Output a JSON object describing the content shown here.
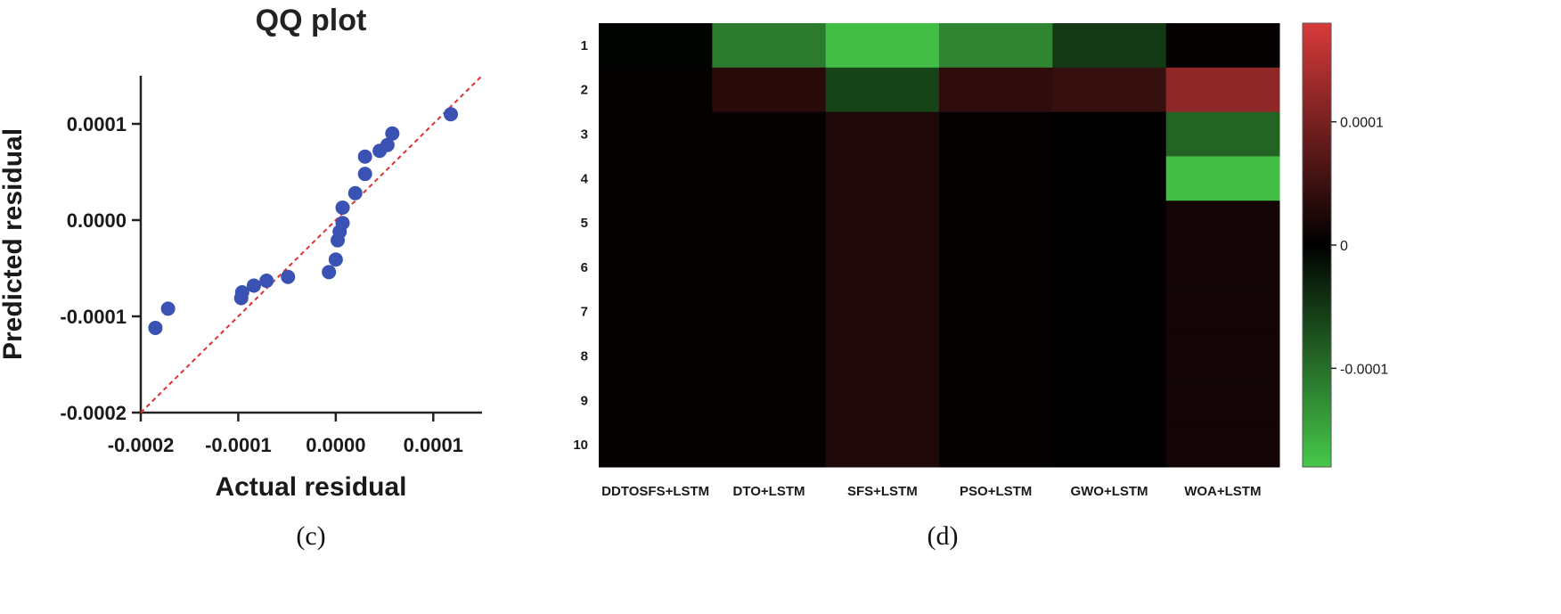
{
  "chart_data": [
    {
      "type": "scatter",
      "title": "QQ plot",
      "xlabel": "Actual residual",
      "ylabel": "Predicted residual",
      "caption": "(c)",
      "xlim": [
        -0.0002,
        0.00015
      ],
      "ylim": [
        -0.0002,
        0.00015
      ],
      "x_ticks": [
        -0.0002,
        -0.0001,
        0.0,
        0.0001
      ],
      "x_tick_labels": [
        "-0.0002",
        "-0.0001",
        "0.0000",
        "0.0001"
      ],
      "y_ticks": [
        -0.0002,
        -0.0001,
        0.0,
        0.0001
      ],
      "y_tick_labels": [
        "-0.0002",
        "-0.0001",
        "0.0000",
        "0.0001"
      ],
      "reference_line": {
        "style": "dashed",
        "color": "#e03030",
        "from": [
          -0.0002,
          -0.0002
        ],
        "to": [
          0.00015,
          0.00015
        ]
      },
      "point_color": "#3a52b3",
      "points": [
        {
          "x": -0.000185,
          "y": -0.000112
        },
        {
          "x": -0.000172,
          "y": -9.2e-05
        },
        {
          "x": -9.7e-05,
          "y": -8.1e-05
        },
        {
          "x": -9.6e-05,
          "y": -7.5e-05
        },
        {
          "x": -8.4e-05,
          "y": -6.8e-05
        },
        {
          "x": -7.1e-05,
          "y": -6.3e-05
        },
        {
          "x": -4.9e-05,
          "y": -5.9e-05
        },
        {
          "x": -7e-06,
          "y": -5.4e-05
        },
        {
          "x": 0.0,
          "y": -4.1e-05
        },
        {
          "x": 2e-06,
          "y": -2.1e-05
        },
        {
          "x": 4e-06,
          "y": -1.2e-05
        },
        {
          "x": 7e-06,
          "y": -3e-06
        },
        {
          "x": 7e-06,
          "y": 1.3e-05
        },
        {
          "x": 2e-05,
          "y": 2.8e-05
        },
        {
          "x": 3e-05,
          "y": 4.8e-05
        },
        {
          "x": 3e-05,
          "y": 6.6e-05
        },
        {
          "x": 4.5e-05,
          "y": 7.2e-05
        },
        {
          "x": 5.3e-05,
          "y": 7.8e-05
        },
        {
          "x": 5.8e-05,
          "y": 9e-05
        },
        {
          "x": 0.000118,
          "y": 0.00011
        }
      ]
    },
    {
      "type": "heatmap",
      "caption": "(d)",
      "columns": [
        "DDTOSFS+LSTM",
        "DTO+LSTM",
        "SFS+LSTM",
        "PSO+LSTM",
        "GWO+LSTM",
        "WOA+LSTM"
      ],
      "rows": [
        "1",
        "2",
        "3",
        "4",
        "5",
        "6",
        "7",
        "8",
        "9",
        "10"
      ],
      "values": [
        [
          -4e-06,
          -0.00011,
          -0.00017,
          -0.00012,
          -5e-05,
          6e-06
        ],
        [
          3e-06,
          3.5e-05,
          -6e-05,
          4e-05,
          4.5e-05,
          0.00012
        ],
        [
          4e-06,
          6e-06,
          2.5e-05,
          4e-06,
          1e-06,
          -9e-05
        ],
        [
          4e-06,
          6e-06,
          2.5e-05,
          4e-06,
          1e-06,
          -0.00017
        ],
        [
          4e-06,
          6e-06,
          2.5e-05,
          4e-06,
          1e-06,
          1.6e-05
        ],
        [
          4e-06,
          6e-06,
          2.5e-05,
          4e-06,
          1e-06,
          1.6e-05
        ],
        [
          4e-06,
          6e-06,
          2.5e-05,
          4e-06,
          1e-06,
          1.6e-05
        ],
        [
          4e-06,
          6e-06,
          2.5e-05,
          4e-06,
          1e-06,
          1.6e-05
        ],
        [
          4e-06,
          6e-06,
          2.5e-05,
          4e-06,
          1e-06,
          1.6e-05
        ],
        [
          4e-06,
          6e-06,
          2.5e-05,
          4e-06,
          1e-06,
          1.6e-05
        ]
      ],
      "colorscale": {
        "min": -0.00018,
        "max": 0.00018,
        "negative_color": "#46c84a",
        "zero_color": "#000000",
        "positive_color": "#d83a3a"
      },
      "colorbar_ticks": [
        0.0001,
        0.0,
        -0.0001
      ],
      "colorbar_tick_labels": [
        "0.0001",
        "0",
        "-0.0001"
      ]
    }
  ]
}
